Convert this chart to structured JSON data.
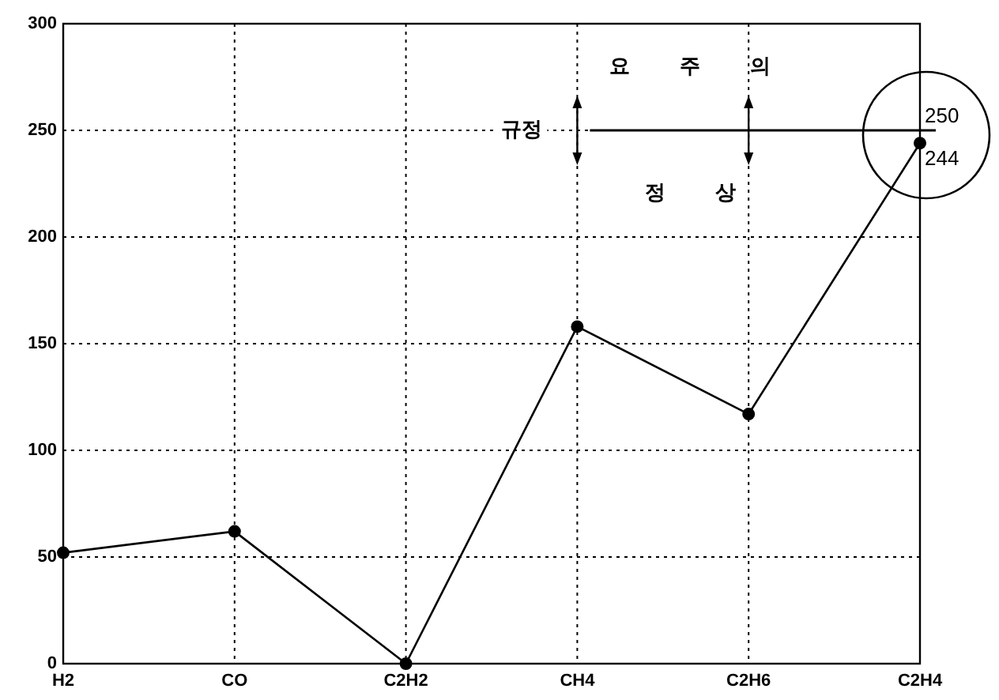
{
  "chart_data": {
    "type": "line",
    "categories": [
      "H2",
      "CO",
      "C2H2",
      "CH4",
      "C2H6",
      "C2H4"
    ],
    "series": [
      {
        "color": "#000000",
        "values": [
          52,
          62,
          0,
          158,
          117,
          244
        ]
      }
    ],
    "ylim": [
      0,
      300
    ],
    "yticks": [
      0,
      50,
      100,
      150,
      200,
      250,
      300
    ],
    "grid": true,
    "marker": "circle",
    "line_style": "solid",
    "ref_lines": [
      {
        "axis": "y",
        "value": 250,
        "label": "250",
        "color": "#000000"
      }
    ],
    "annotations": [
      "규정",
      "요 주 의",
      "정 상",
      {
        "text": "244",
        "x": "C2H4",
        "y": 244
      }
    ]
  }
}
